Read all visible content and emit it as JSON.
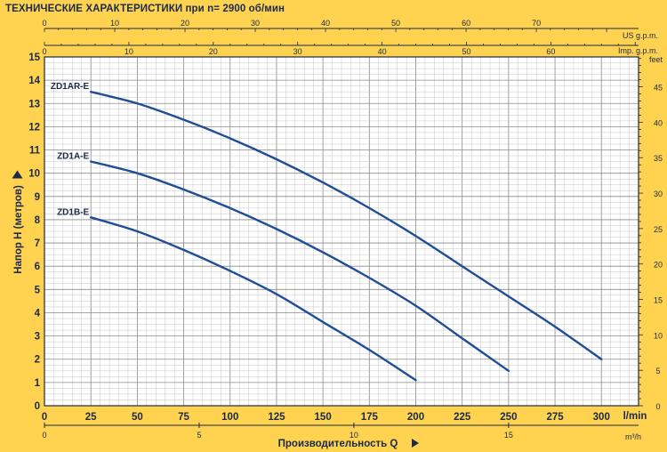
{
  "chart_data": {
    "type": "line",
    "title": "ТЕХНИЧЕСКИЕ ХАРАКТЕРИСТИКИ при n= 2900 об/мин",
    "xlabel": "Производительность Q",
    "ylabel": "Напор H  (метров)",
    "x_unit": "l/min",
    "x_secondary_unit": "m³/h",
    "top_unit_us": "US g.p.m.",
    "top_unit_imp": "Imp. g.p.m.",
    "right_unit": "feet",
    "xlim": [
      0,
      320
    ],
    "ylim": [
      0,
      15
    ],
    "x_ticks": [
      "0",
      "25",
      "50",
      "75",
      "100",
      "125",
      "150",
      "175",
      "200",
      "225",
      "250",
      "275",
      "300"
    ],
    "y_ticks": [
      "0",
      "1",
      "2",
      "3",
      "4",
      "5",
      "6",
      "7",
      "8",
      "9",
      "10",
      "11",
      "12",
      "13",
      "14",
      "15"
    ],
    "m3h_ticks": [
      "0",
      "5",
      "10",
      "15"
    ],
    "us_gpm_ticks": [
      "0",
      "10",
      "20",
      "30",
      "40",
      "50",
      "60",
      "70"
    ],
    "imp_gpm_ticks": [
      "0",
      "10",
      "20",
      "30",
      "40",
      "50",
      "60"
    ],
    "feet_ticks": [
      "0",
      "5",
      "10",
      "15",
      "20",
      "25",
      "30",
      "35",
      "40",
      "45"
    ],
    "grid": true,
    "series": [
      {
        "name": "ZD1AR-E",
        "x": [
          25,
          50,
          75,
          100,
          125,
          150,
          175,
          200,
          225,
          250,
          275,
          300
        ],
        "y": [
          13.5,
          13.0,
          12.3,
          11.5,
          10.6,
          9.6,
          8.5,
          7.3,
          6.0,
          4.7,
          3.4,
          2.0
        ]
      },
      {
        "name": "ZD1A-E",
        "x": [
          25,
          50,
          75,
          100,
          125,
          150,
          175,
          200,
          225,
          250
        ],
        "y": [
          10.5,
          10.0,
          9.3,
          8.5,
          7.6,
          6.6,
          5.5,
          4.3,
          2.9,
          1.5
        ]
      },
      {
        "name": "ZD1B-E",
        "x": [
          25,
          50,
          75,
          100,
          125,
          150,
          175,
          200
        ],
        "y": [
          8.1,
          7.5,
          6.7,
          5.8,
          4.8,
          3.6,
          2.4,
          1.1
        ]
      }
    ],
    "line_color": "#1F4E96",
    "grid_color": "#B8B8B8",
    "plot_background": "#FFFFFF"
  }
}
